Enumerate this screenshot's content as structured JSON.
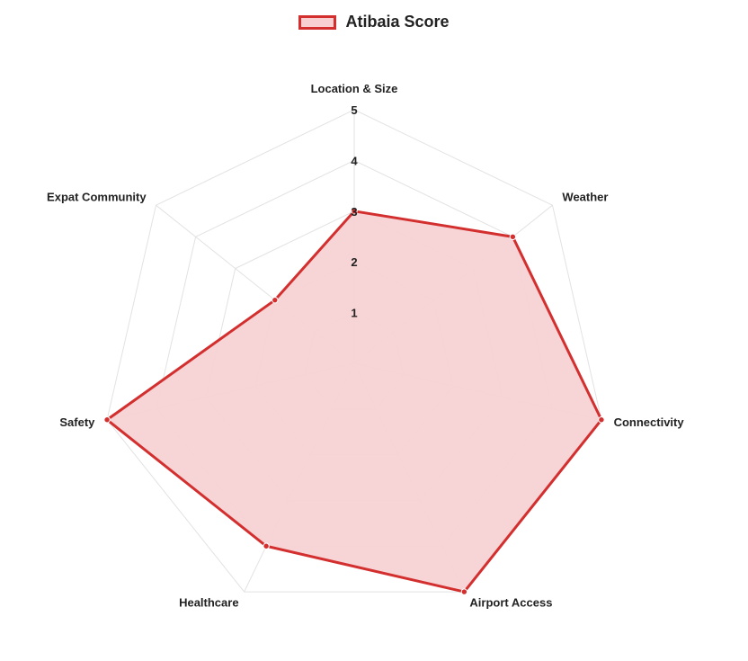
{
  "chart_data": {
    "type": "radar",
    "legend": {
      "position": "top-center"
    },
    "axes": [
      "Location & Size",
      "Weather",
      "Connectivity",
      "Airport Access",
      "Healthcare",
      "Safety",
      "Expat Community"
    ],
    "r_ticks": [
      "1",
      "2",
      "3",
      "4",
      "5"
    ],
    "r_min": 0,
    "r_max": 5,
    "series": [
      {
        "name": "Atibaia Score",
        "values": [
          3,
          4,
          5,
          5,
          4,
          5,
          2
        ],
        "line_color": "#d32f2f",
        "fill_color": "#f7d3d5"
      }
    ],
    "grid": true
  }
}
